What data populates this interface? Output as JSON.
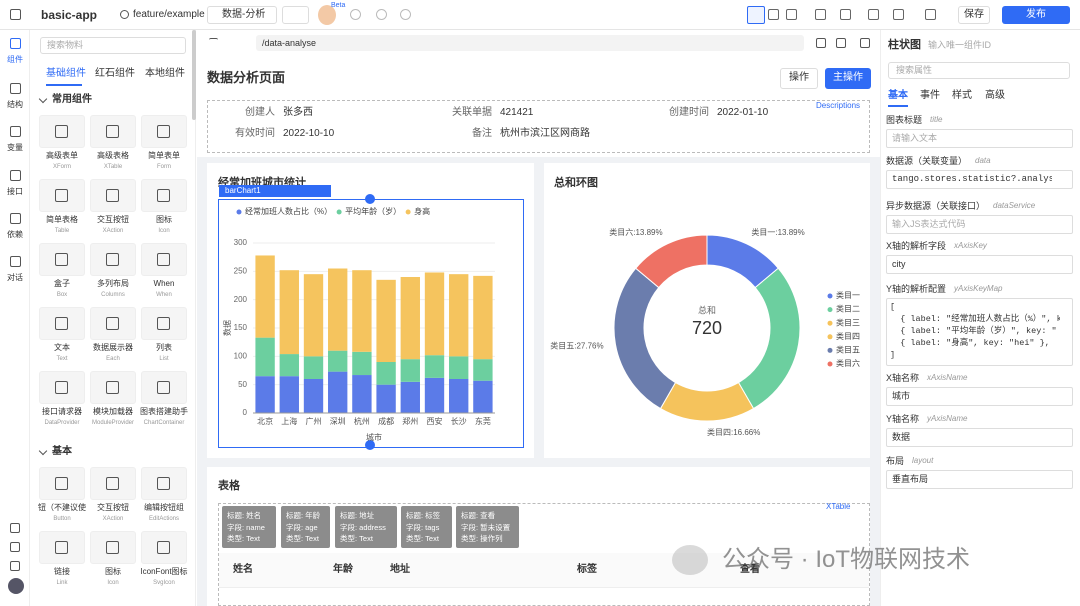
{
  "toolbar": {
    "app": "basic-app",
    "branch": "feature/example",
    "page": "数据-分析",
    "beta": "Beta",
    "save": "保存",
    "publish": "发布"
  },
  "rail": [
    "组件",
    "结构",
    "变量",
    "接口",
    "依赖",
    "对话"
  ],
  "palette": {
    "search": "搜索物料",
    "tabs": [
      "基础组件",
      "红石组件",
      "本地组件"
    ],
    "groups": [
      {
        "title": "常用组件",
        "items": [
          [
            "高级表单",
            "XForm"
          ],
          [
            "高级表格",
            "XTable"
          ],
          [
            "简单表单",
            "Form"
          ],
          [
            "简单表格",
            "Table"
          ],
          [
            "交互按钮",
            "XAction"
          ],
          [
            "图标",
            "Icon"
          ],
          [
            "盒子",
            "Box"
          ],
          [
            "多列布局",
            "Columns"
          ],
          [
            "When",
            "When"
          ],
          [
            "文本",
            "Text"
          ],
          [
            "数据展示器",
            "Each"
          ],
          [
            "列表",
            "List"
          ],
          [
            "接口请求器",
            "DataProvider"
          ],
          [
            "模块加载器",
            "ModuleProvider"
          ],
          [
            "图表搭建助手",
            "ChartContainer"
          ]
        ]
      },
      {
        "title": "基本",
        "items": [
          [
            "钮（不建议使",
            "Button"
          ],
          [
            "交互按钮",
            "XAction"
          ],
          [
            "编辑按钮组",
            "EditActions"
          ],
          [
            "链接",
            "Link"
          ],
          [
            "图标",
            "Icon"
          ],
          [
            "IconFont图标",
            "SvgIcon"
          ]
        ]
      }
    ]
  },
  "canvas": {
    "url": "/data-analyse",
    "title": "数据分析页面",
    "actions": [
      "操作",
      "主操作"
    ],
    "descriptions": {
      "tag": "Descriptions",
      "items": [
        [
          "创建人",
          "张多西"
        ],
        [
          "关联单据",
          "421421"
        ],
        [
          "创建时间",
          "2022-01-10"
        ],
        [
          "有效时间",
          "2022-10-10"
        ],
        [
          "备注",
          "杭州市滨江区网商路"
        ]
      ]
    },
    "bar_card": {
      "title": "经常加班城市统计",
      "selected": "barChart1"
    },
    "pie_card": {
      "title": "总和环图"
    },
    "table": {
      "title": "表格",
      "tag": "XTable",
      "columns": [
        [
          "标题: 姓名",
          "字段: name",
          "类型: Text"
        ],
        [
          "标题: 年龄",
          "字段: age",
          "类型: Text"
        ],
        [
          "标题: 地址",
          "字段: address",
          "类型: Text"
        ],
        [
          "标题: 标签",
          "字段: tags",
          "类型: Text"
        ],
        [
          "标题: 查看",
          "字段: 暂未设置",
          "类型: 操作列"
        ]
      ],
      "headers": [
        "姓名",
        "年龄",
        "地址",
        "标签",
        "查看"
      ]
    }
  },
  "chart_data": [
    {
      "type": "bar",
      "stacked": true,
      "categories": [
        "北京",
        "上海",
        "广州",
        "深圳",
        "杭州",
        "成都",
        "郑州",
        "西安",
        "长沙",
        "东莞"
      ],
      "series": [
        {
          "name": "经常加班人数占比（%）",
          "color": "#5b7be8",
          "values": [
            65,
            65,
            60,
            73,
            67,
            50,
            55,
            62,
            60,
            57
          ]
        },
        {
          "name": "平均年龄（岁）",
          "color": "#6ccf9f",
          "values": [
            68,
            39,
            40,
            37,
            41,
            40,
            40,
            40,
            40,
            38
          ]
        },
        {
          "name": "身高",
          "color": "#f5c45e",
          "values": [
            145,
            148,
            145,
            145,
            144,
            145,
            145,
            146,
            145,
            147
          ]
        }
      ],
      "ylim": [
        0,
        300
      ],
      "yticks": [
        0,
        50,
        100,
        150,
        200,
        250,
        300
      ],
      "xlabel": "城市",
      "ylabel": "数据",
      "legend": "top"
    },
    {
      "type": "donut",
      "categories": [
        "类目一",
        "类目二",
        "类目三",
        "类目四",
        "类目五",
        "类目六"
      ],
      "values": [
        13.89,
        27.76,
        0,
        16.66,
        27.76,
        13.89
      ],
      "value_labels": [
        "类目一:13.89%",
        null,
        null,
        "类目四:16.66%",
        "类目五:27.76%",
        "类目六:13.89%"
      ],
      "colors": [
        "#5b7be8",
        "#6ccf9f",
        "#f6c35a",
        "#f5c35c",
        "#6b7dad",
        "#ee7164"
      ],
      "center_label": "总和",
      "center_value": "720",
      "legend": "right"
    }
  ],
  "props": {
    "title": "柱状图",
    "id_placeholder": "输入唯一组件ID",
    "search": "搜索属性",
    "tabs": [
      "基本",
      "事件",
      "样式",
      "高级"
    ],
    "fields": [
      {
        "label": "图表标题",
        "key": "title",
        "placeholder": "请输入文本"
      },
      {
        "label": "数据源（关联变量）",
        "key": "data",
        "value": "tango.stores.statistic?.analyseDa"
      },
      {
        "label": "异步数据源（关联接口）",
        "key": "dataService",
        "placeholder": "输入JS表达式代码"
      },
      {
        "label": "X轴的解析字段",
        "key": "xAxisKey",
        "value": "city"
      },
      {
        "label": "Y轴的解析配置",
        "key": "yAxisKeyMap",
        "code": [
          "[",
          "  { label: \"经常加班人数占比（%）\", k",
          "  { label: \"平均年龄（岁）\", key: \"",
          "  { label: \"身高\", key: \"hei\" },",
          "]"
        ]
      },
      {
        "label": "X轴名称",
        "key": "xAxisName",
        "value": "城市"
      },
      {
        "label": "Y轴名称",
        "key": "yAxisName",
        "value": "数据"
      },
      {
        "label": "布局",
        "key": "layout",
        "value": "垂直布局"
      }
    ]
  },
  "watermark": "公众号 · IoT物联网技术"
}
